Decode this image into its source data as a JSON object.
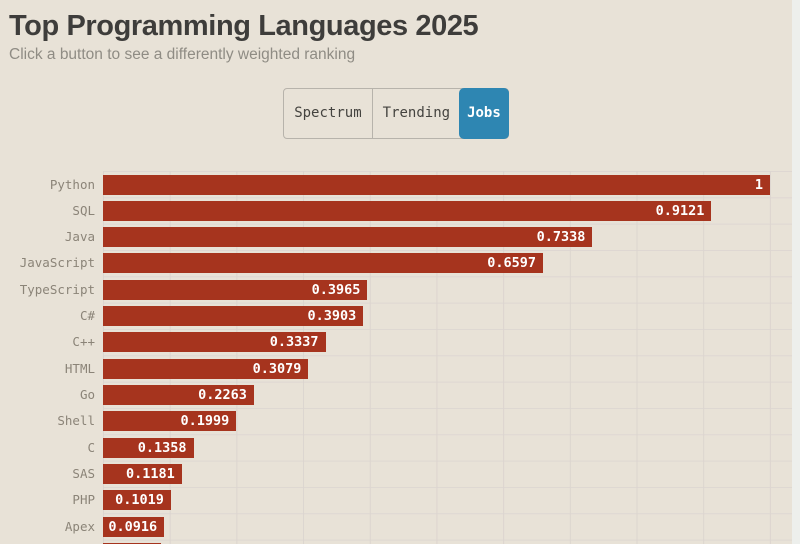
{
  "page": {
    "title": "Top Programming Languages 2025",
    "subtitle": "Click a button to see a differently weighted ranking"
  },
  "toolbar": {
    "buttons": [
      {
        "label": "Spectrum",
        "active": false
      },
      {
        "label": "Trending",
        "active": false
      },
      {
        "label": "Jobs",
        "active": true
      }
    ]
  },
  "chart_data": {
    "type": "bar",
    "orientation": "horizontal",
    "title": "Top Programming Languages 2025",
    "categories": [
      "Python",
      "SQL",
      "Java",
      "JavaScript",
      "TypeScript",
      "C#",
      "C++",
      "HTML",
      "Go",
      "Shell",
      "C",
      "SAS",
      "PHP",
      "Apex"
    ],
    "values": [
      1,
      0.9121,
      0.7338,
      0.6597,
      0.3965,
      0.3903,
      0.3337,
      0.3079,
      0.2263,
      0.1999,
      0.1358,
      0.1181,
      0.1019,
      0.0916
    ],
    "value_labels": [
      "1",
      "0.9121",
      "0.7338",
      "0.6597",
      "0.3965",
      "0.3903",
      "0.3337",
      "0.3079",
      "0.2263",
      "0.1999",
      "0.1358",
      "0.1181",
      "0.1019",
      "0.0916"
    ],
    "xlim": [
      0,
      1
    ],
    "grid": true,
    "gridline_interval": 0.1,
    "legend": "none",
    "cutoff_next_bar_visible": true
  },
  "colors": {
    "page_background": "#edefec",
    "card_background": "#e8e2d7",
    "bar_color": "#a6341e",
    "value_label_color": "#ffffff",
    "category_label_color": "#8b8478",
    "grid_line": "#dcd5cf",
    "title": "#3e3d3b",
    "subtitle": "#8f8c84",
    "button_text": "#44433f",
    "button_border": "#b7b3ab",
    "active_button_bg": "#2e86b2",
    "active_button_text": "#ffffff"
  }
}
